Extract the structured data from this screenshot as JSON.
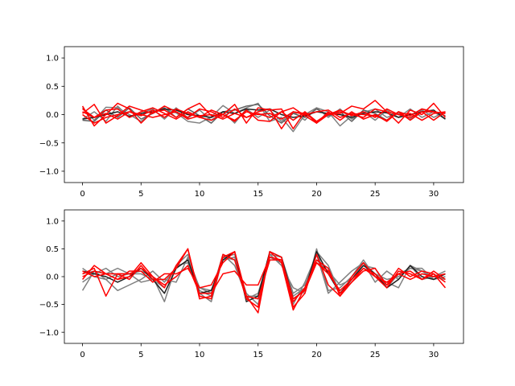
{
  "chart_data": [
    {
      "type": "line",
      "title": "",
      "xlabel": "",
      "ylabel": "",
      "xlim": [
        -1.55,
        32.55
      ],
      "ylim": [
        -1.2,
        1.2
      ],
      "xticks": [
        0,
        5,
        10,
        15,
        20,
        25,
        30
      ],
      "yticks": [
        -1.0,
        -0.5,
        0.0,
        0.5,
        1.0
      ],
      "xtick_labels": [
        "0",
        "5",
        "10",
        "15",
        "20",
        "25",
        "30"
      ],
      "ytick_labels": [
        "−1.0",
        "−0.5",
        "0.0",
        "0.5",
        "1.0"
      ],
      "grid": false,
      "x": [
        0,
        1,
        2,
        3,
        4,
        5,
        6,
        7,
        8,
        9,
        10,
        11,
        12,
        13,
        14,
        15,
        16,
        17,
        18,
        19,
        20,
        21,
        22,
        23,
        24,
        25,
        26,
        27,
        28,
        29,
        30,
        31
      ],
      "series": [
        {
          "color": "#808080",
          "values": [
            0.12,
            -0.1,
            0.13,
            0.12,
            0.0,
            -0.12,
            0.05,
            0.1,
            0.03,
            -0.12,
            -0.15,
            -0.04,
            0.16,
            0.02,
            0.12,
            0.2,
            -0.12,
            -0.05,
            -0.3,
            0.0,
            0.12,
            0.05,
            -0.2,
            -0.02,
            0.04,
            0.1,
            -0.05,
            0.02,
            -0.08,
            0.08,
            -0.05,
            0.05
          ]
        },
        {
          "color": "#808080",
          "values": [
            -0.08,
            0.05,
            -0.12,
            0.15,
            -0.05,
            0.02,
            0.1,
            -0.08,
            0.12,
            -0.06,
            0.08,
            -0.1,
            0.05,
            -0.15,
            0.1,
            -0.05,
            0.08,
            -0.12,
            0.05,
            -0.1,
            0.12,
            -0.05,
            0.1,
            -0.08,
            0.05,
            -0.1,
            0.08,
            -0.05,
            0.1,
            -0.05,
            0.05,
            -0.08
          ]
        },
        {
          "color": "#606060",
          "values": [
            -0.1,
            -0.12,
            0.08,
            -0.05,
            0.12,
            -0.08,
            0.02,
            0.12,
            -0.05,
            0.1,
            -0.02,
            -0.15,
            0.05,
            0.08,
            0.15,
            0.18,
            -0.02,
            -0.15,
            0.02,
            -0.05,
            0.1,
            -0.02,
            0.05,
            -0.12,
            0.08,
            0.02,
            -0.1,
            0.05,
            -0.02,
            0.1,
            0.05,
            -0.02
          ]
        },
        {
          "color": "#202020",
          "values": [
            -0.08,
            -0.05,
            0.0,
            0.05,
            -0.03,
            0.02,
            0.05,
            0.1,
            0.08,
            0.0,
            -0.02,
            -0.05,
            0.05,
            0.02,
            0.1,
            0.08,
            0.1,
            0.0,
            -0.05,
            -0.02,
            0.05,
            0.02,
            0.0,
            -0.05,
            0.02,
            0.05,
            0.03,
            -0.05,
            0.0,
            0.05,
            0.08,
            -0.08
          ]
        },
        {
          "color": "#ff0000",
          "values": [
            0.15,
            -0.2,
            0.0,
            0.2,
            0.1,
            -0.15,
            0.05,
            0.08,
            -0.05,
            0.1,
            0.2,
            -0.02,
            0.0,
            0.18,
            -0.15,
            0.12,
            0.08,
            0.1,
            -0.25,
            0.05,
            -0.12,
            0.0,
            0.02,
            0.15,
            0.1,
            0.25,
            0.05,
            -0.15,
            0.08,
            0.0,
            0.2,
            -0.05
          ]
        },
        {
          "color": "#ff0000",
          "values": [
            0.02,
            0.18,
            -0.15,
            -0.02,
            0.15,
            0.08,
            0.02,
            0.15,
            0.05,
            -0.05,
            0.1,
            0.05,
            -0.05,
            0.1,
            -0.05,
            0.02,
            -0.05,
            0.05,
            0.12,
            -0.02,
            -0.15,
            0.0,
            0.08,
            -0.02,
            0.05,
            -0.05,
            0.1,
            0.0,
            -0.05,
            0.05,
            -0.1,
            0.05
          ]
        },
        {
          "color": "#ff0000",
          "values": [
            0.05,
            -0.05,
            0.02,
            -0.08,
            0.05,
            -0.02,
            0.08,
            -0.05,
            0.1,
            0.02,
            -0.05,
            0.08,
            0.0,
            -0.1,
            0.05,
            0.0,
            0.02,
            -0.08,
            0.05,
            0.02,
            -0.12,
            0.02,
            0.05,
            0.0,
            -0.05,
            0.1,
            0.05,
            0.0,
            0.02,
            -0.1,
            0.02,
            0.05
          ]
        },
        {
          "color": "#ff0000",
          "values": [
            0.1,
            -0.05,
            0.08,
            0.1,
            -0.05,
            0.05,
            0.12,
            0.02,
            -0.08,
            0.05,
            -0.05,
            -0.1,
            0.0,
            -0.12,
            0.08,
            -0.1,
            -0.12,
            0.05,
            -0.1,
            0.05,
            -0.15,
            0.05,
            -0.1,
            0.05,
            -0.08,
            0.0,
            -0.12,
            0.05,
            -0.02,
            0.1,
            0.05,
            0.02
          ]
        },
        {
          "color": "#ff0000",
          "values": [
            0.0,
            -0.15,
            -0.05,
            0.0,
            0.05,
            0.0,
            -0.05,
            0.0,
            0.05,
            -0.08,
            -0.02,
            0.0,
            -0.08,
            0.02,
            -0.05,
            0.05,
            0.1,
            -0.25,
            0.05,
            0.0,
            0.05,
            0.08,
            -0.05,
            0.02,
            0.0,
            -0.02,
            -0.1,
            0.05,
            -0.1,
            0.05,
            0.05,
            0.02
          ]
        }
      ]
    },
    {
      "type": "line",
      "title": "",
      "xlabel": "",
      "ylabel": "",
      "xlim": [
        -1.55,
        32.55
      ],
      "ylim": [
        -1.2,
        1.2
      ],
      "xticks": [
        0,
        5,
        10,
        15,
        20,
        25,
        30
      ],
      "yticks": [
        -1.0,
        -0.5,
        0.0,
        0.5,
        1.0
      ],
      "xtick_labels": [
        "0",
        "5",
        "10",
        "15",
        "20",
        "25",
        "30"
      ],
      "ytick_labels": [
        "−1.0",
        "−0.5",
        "0.0",
        "0.5",
        "1.0"
      ],
      "grid": false,
      "x": [
        0,
        1,
        2,
        3,
        4,
        5,
        6,
        7,
        8,
        9,
        10,
        11,
        12,
        13,
        14,
        15,
        16,
        17,
        18,
        19,
        20,
        21,
        22,
        23,
        24,
        25,
        26,
        27,
        28,
        29,
        30,
        31
      ],
      "series": [
        {
          "color": "#808080",
          "values": [
            -0.25,
            0.1,
            0.05,
            0.15,
            0.05,
            0.1,
            0.0,
            -0.45,
            0.2,
            0.4,
            -0.3,
            -0.45,
            0.35,
            0.3,
            -0.4,
            -0.3,
            0.4,
            0.2,
            -0.2,
            -0.3,
            0.5,
            -0.25,
            -0.2,
            0.0,
            0.3,
            0.0,
            -0.1,
            -0.2,
            0.2,
            0.1,
            0.0,
            -0.05
          ]
        },
        {
          "color": "#808080",
          "values": [
            0.15,
            0.0,
            -0.05,
            -0.25,
            -0.15,
            -0.05,
            0.1,
            -0.1,
            0.15,
            0.3,
            -0.2,
            -0.3,
            0.4,
            0.2,
            -0.35,
            -0.4,
            0.3,
            0.3,
            -0.5,
            -0.1,
            0.4,
            -0.3,
            -0.1,
            0.1,
            0.25,
            -0.1,
            0.1,
            -0.05,
            0.2,
            -0.05,
            0.0,
            0.1
          ]
        },
        {
          "color": "#808080",
          "values": [
            -0.1,
            0.05,
            0.15,
            0.0,
            0.05,
            -0.1,
            -0.05,
            -0.2,
            0.2,
            0.25,
            -0.25,
            -0.35,
            0.35,
            0.4,
            -0.35,
            -0.35,
            0.35,
            0.25,
            -0.35,
            -0.2,
            0.45,
            0.2,
            -0.3,
            -0.05,
            0.2,
            0.15,
            -0.2,
            0.05,
            0.15,
            0.1,
            -0.05,
            0.05
          ]
        },
        {
          "color": "#808080",
          "values": [
            0.05,
            0.1,
            -0.05,
            0.05,
            0.05,
            0.05,
            -0.05,
            -0.05,
            -0.1,
            0.35,
            -0.2,
            -0.25,
            0.3,
            0.35,
            -0.3,
            -0.5,
            0.4,
            0.35,
            -0.3,
            -0.15,
            0.3,
            0.1,
            -0.15,
            -0.05,
            0.25,
            0.05,
            -0.05,
            0.0,
            0.15,
            0.15,
            -0.05,
            0.0
          ]
        },
        {
          "color": "#202020",
          "values": [
            0.1,
            0.05,
            0.0,
            -0.1,
            0.0,
            0.15,
            -0.05,
            -0.3,
            0.15,
            0.3,
            -0.3,
            -0.25,
            0.3,
            0.45,
            -0.45,
            -0.35,
            0.45,
            0.35,
            -0.4,
            -0.25,
            0.45,
            0.05,
            -0.3,
            -0.05,
            0.2,
            0.05,
            -0.2,
            -0.05,
            0.2,
            0.0,
            -0.05,
            0.05
          ]
        },
        {
          "color": "#ff0000",
          "values": [
            0.05,
            0.15,
            -0.35,
            0.05,
            -0.05,
            0.2,
            -0.05,
            -0.05,
            0.15,
            0.5,
            -0.35,
            -0.4,
            0.35,
            0.45,
            -0.35,
            -0.65,
            0.45,
            0.25,
            -0.6,
            -0.2,
            0.3,
            0.15,
            -0.35,
            -0.1,
            0.1,
            0.15,
            -0.15,
            0.15,
            0.0,
            0.1,
            0.05,
            -0.2
          ]
        },
        {
          "color": "#ff0000",
          "values": [
            -0.05,
            0.2,
            0.05,
            -0.05,
            0.0,
            0.25,
            0.0,
            -0.2,
            0.2,
            0.5,
            -0.4,
            -0.35,
            0.4,
            0.3,
            -0.4,
            -0.55,
            0.45,
            0.35,
            -0.55,
            -0.3,
            0.4,
            -0.15,
            -0.35,
            0.0,
            0.25,
            0.0,
            -0.2,
            0.1,
            0.05,
            -0.05,
            0.1,
            -0.05
          ]
        },
        {
          "color": "#ff0000",
          "values": [
            0.1,
            0.0,
            0.05,
            0.05,
            0.05,
            0.15,
            0.0,
            -0.15,
            0.0,
            0.2,
            -0.3,
            -0.3,
            0.05,
            0.1,
            -0.15,
            -0.15,
            0.35,
            0.3,
            -0.4,
            -0.25,
            0.25,
            0.1,
            -0.3,
            -0.1,
            0.15,
            0.05,
            -0.15,
            0.05,
            -0.05,
            0.05,
            0.0,
            0.05
          ]
        },
        {
          "color": "#ff0000",
          "values": [
            0.0,
            0.1,
            0.05,
            -0.05,
            0.1,
            0.1,
            -0.1,
            0.05,
            0.05,
            0.15,
            -0.2,
            -0.15,
            0.25,
            0.45,
            -0.35,
            -0.4,
            0.3,
            0.3,
            -0.45,
            -0.2,
            0.25,
            0.05,
            -0.25,
            -0.05,
            0.15,
            0.0,
            -0.1,
            0.05,
            0.1,
            -0.05,
            0.05,
            -0.1
          ]
        }
      ]
    }
  ]
}
